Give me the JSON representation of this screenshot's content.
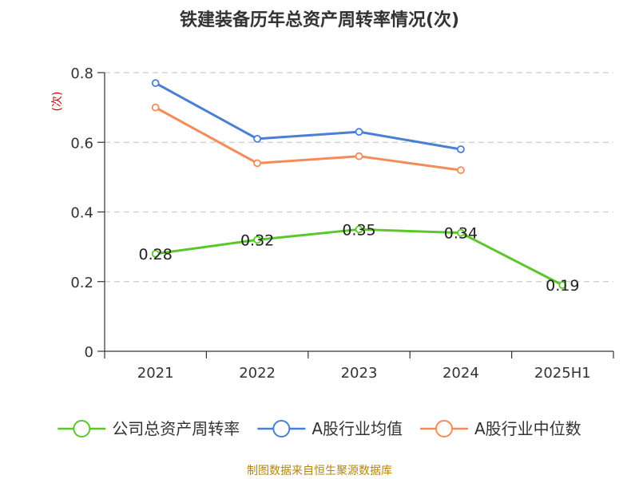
{
  "title": "铁建装备历年总资产周转率情况(次)",
  "source": "制图数据来自恒生聚源数据库",
  "colors": {
    "axis": "#333333",
    "grid": "#cccccc",
    "unit": "#cc0000",
    "source": "#b8860b"
  },
  "chart_data": {
    "type": "line",
    "title": "铁建装备历年总资产周转率情况(次)",
    "ylabel": "(次)",
    "xlabel": "",
    "categories": [
      "2021",
      "2022",
      "2023",
      "2024",
      "2025H1"
    ],
    "ylim": [
      0,
      0.8
    ],
    "yticks": [
      0,
      0.2,
      0.4,
      0.6,
      0.8
    ],
    "ytick_labels": [
      "0",
      "0.2",
      "0.4",
      "0.6",
      "0.8"
    ],
    "grid": true,
    "legend_position": "bottom",
    "series": [
      {
        "name": "公司总资产周转率",
        "color": "#5cc72b",
        "values": [
          0.28,
          0.32,
          0.35,
          0.34,
          0.19
        ],
        "labels": [
          "0.28",
          "0.32",
          "0.35",
          "0.34",
          "0.19"
        ]
      },
      {
        "name": "A股行业均值",
        "color": "#4a7fd6",
        "values": [
          0.77,
          0.61,
          0.63,
          0.58,
          null
        ],
        "labels": []
      },
      {
        "name": "A股行业中位数",
        "color": "#f68b5a",
        "values": [
          0.7,
          0.54,
          0.56,
          0.52,
          null
        ],
        "labels": []
      }
    ]
  }
}
